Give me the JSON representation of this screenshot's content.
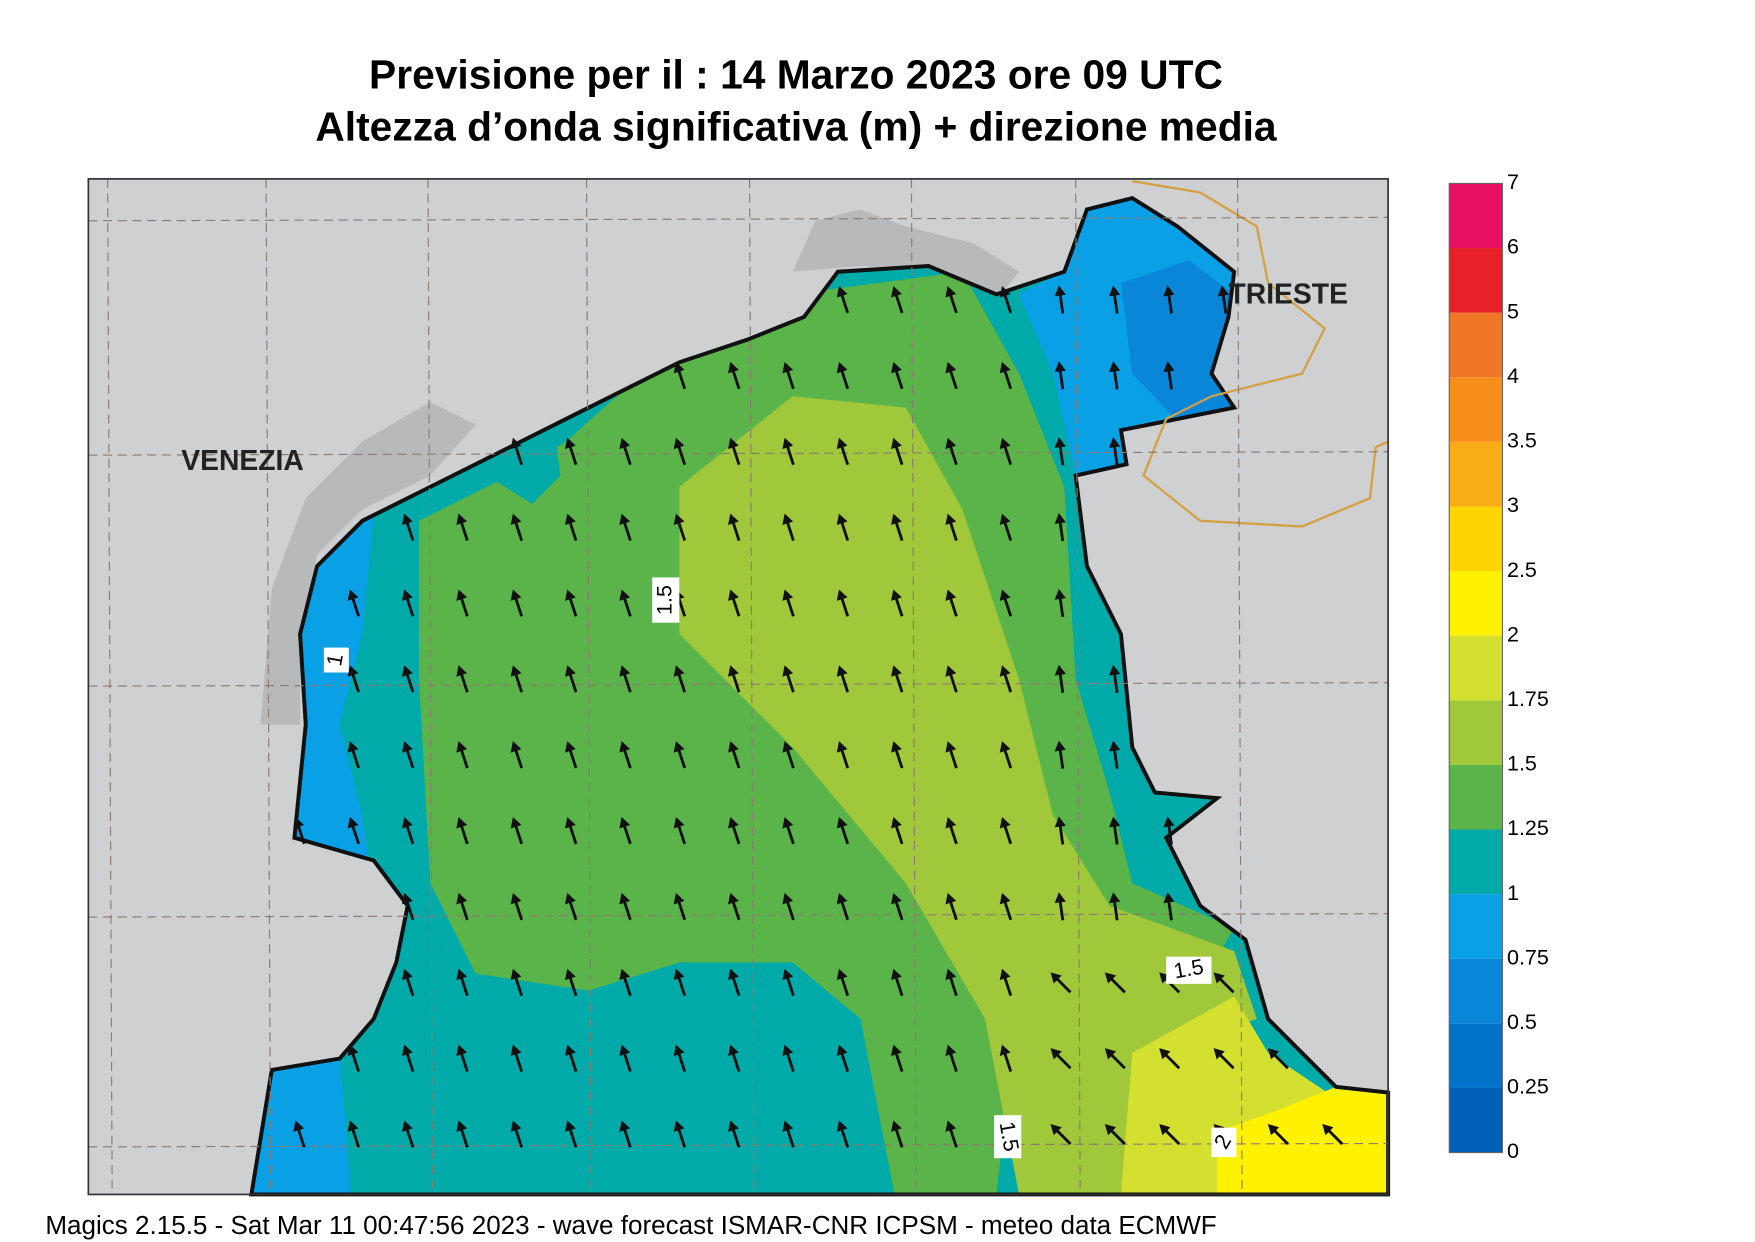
{
  "header": {
    "title": "Previsione per il  :  14   Marzo   2023   ore 09 UTC",
    "subtitle": "Altezza d’onda significativa (m) + direzione media"
  },
  "places": [
    "VENEZIA",
    "TRIESTE"
  ],
  "contour_labels": [
    "1.5",
    "1",
    "1.5",
    "1.5",
    "2"
  ],
  "colorbar": {
    "levels": [
      "0",
      "0.25",
      "0.5",
      "0.75",
      "1",
      "1.25",
      "1.5",
      "1.75",
      "2",
      "2.5",
      "3",
      "3.5",
      "4",
      "5",
      "6",
      "7"
    ],
    "colors": [
      "#0060b8",
      "#0072c8",
      "#0a86d8",
      "#0aa0e6",
      "#00aaa8",
      "#5ab44a",
      "#a0c83a",
      "#d4e030",
      "#fff200",
      "#ffd400",
      "#f8ac18",
      "#f88e1a",
      "#f07628",
      "#e82028",
      "#e81060"
    ]
  },
  "footer": "Magics 2.15.5 - Sat Mar 11 00:47:56 2023 - wave forecast  ISMAR-CNR  ICPSM - meteo data    ECMWF"
}
